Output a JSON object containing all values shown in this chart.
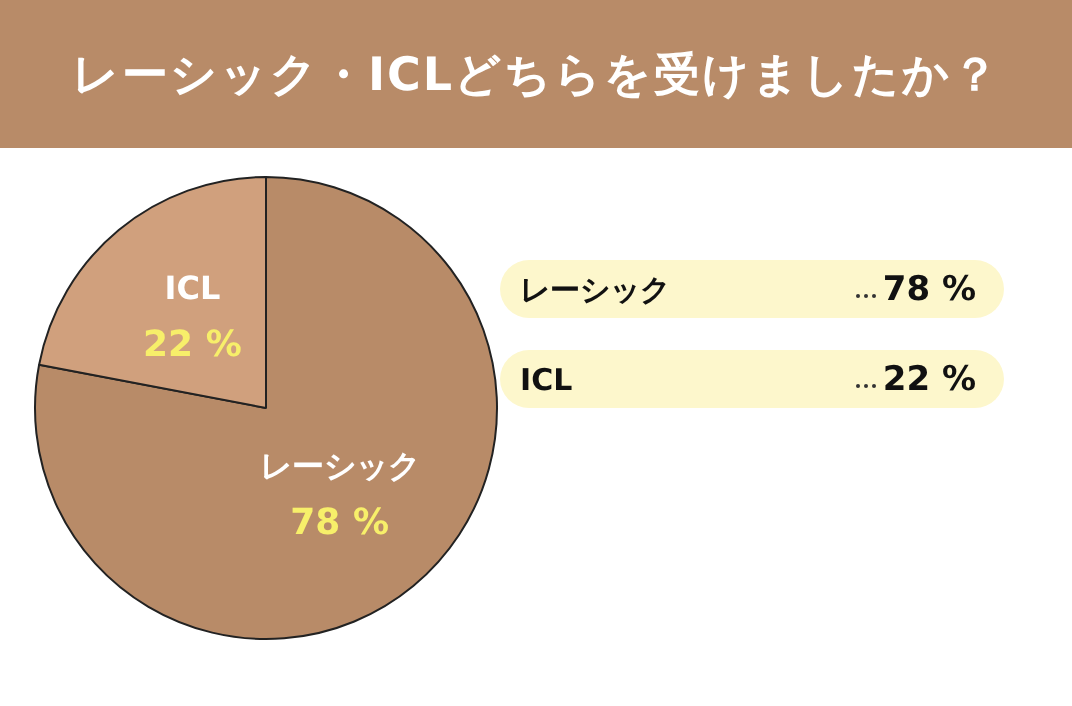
{
  "chart_data": {
    "type": "pie",
    "title": "レーシック・ICLどちらを受けましたか？",
    "categories": [
      "レーシック",
      "ICL"
    ],
    "values": [
      78,
      22
    ],
    "colors": [
      "#b88b68",
      "#d0a07d"
    ],
    "value_labels": [
      "78 %",
      "22 %"
    ],
    "data_labels": true,
    "legend": false
  }
}
